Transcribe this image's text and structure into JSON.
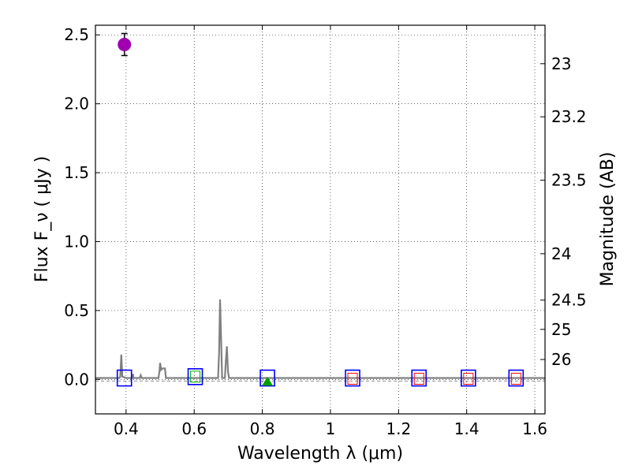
{
  "chart_data": {
    "type": "scatter",
    "xlabel": "Wavelength  λ (μm)",
    "ylabel": "Flux  F_ν  ( μJy )",
    "ylabel_right": "Magnitude (AB)",
    "xlim": [
      0.31,
      1.63
    ],
    "ylim": [
      -0.25,
      2.57
    ],
    "grid": true,
    "x_ticks": [
      0.4,
      0.6,
      0.8,
      1.0,
      1.2,
      1.4,
      1.6
    ],
    "x_tick_labels": [
      "0.4",
      "0.6",
      "0.8",
      "1",
      "1.2",
      "1.4",
      "1.6"
    ],
    "y_ticks": [
      0.0,
      0.5,
      1.0,
      1.5,
      2.0,
      2.5
    ],
    "y_tick_labels": [
      "0.0",
      "0.5",
      "1.0",
      "1.5",
      "2.0",
      "2.5"
    ],
    "right_ticks": [
      {
        "mag": 23,
        "label": "23"
      },
      {
        "mag": 23.2,
        "label": "23.2"
      },
      {
        "mag": 23.5,
        "label": "23.5"
      },
      {
        "mag": 24,
        "label": "24"
      },
      {
        "mag": 24.5,
        "label": "24.5"
      },
      {
        "mag": 25,
        "label": "25"
      },
      {
        "mag": 26,
        "label": "26"
      }
    ],
    "colors": {
      "detection": "#a000b0",
      "model_spectrum": "#808080",
      "model_photometry": "#0000ff",
      "limit_box": "#ff0000",
      "green_box": "#00b000",
      "green_marker": "#00a000"
    },
    "series": [
      {
        "role": "detection",
        "points": [
          {
            "x": 0.395,
            "y": 2.43,
            "yerr": 0.08
          }
        ]
      },
      {
        "role": "model_spectrum",
        "points": [
          [
            0.31,
            0.01
          ],
          [
            0.38,
            0.01
          ],
          [
            0.383,
            0.02
          ],
          [
            0.386,
            0.18
          ],
          [
            0.389,
            0.02
          ],
          [
            0.4,
            0.01
          ],
          [
            0.418,
            0.01
          ],
          [
            0.42,
            0.04
          ],
          [
            0.422,
            0.01
          ],
          [
            0.44,
            0.01
          ],
          [
            0.443,
            0.03
          ],
          [
            0.446,
            0.01
          ],
          [
            0.495,
            0.01
          ],
          [
            0.498,
            0.06
          ],
          [
            0.5,
            0.12
          ],
          [
            0.503,
            0.07
          ],
          [
            0.507,
            0.08
          ],
          [
            0.51,
            0.08
          ],
          [
            0.514,
            0.08
          ],
          [
            0.517,
            0.01
          ],
          [
            0.67,
            0.01
          ],
          [
            0.673,
            0.2
          ],
          [
            0.676,
            0.58
          ],
          [
            0.679,
            0.3
          ],
          [
            0.682,
            0.01
          ],
          [
            0.69,
            0.01
          ],
          [
            0.693,
            0.14
          ],
          [
            0.696,
            0.24
          ],
          [
            0.699,
            0.06
          ],
          [
            0.702,
            0.01
          ],
          [
            1.63,
            0.01
          ]
        ]
      },
      {
        "role": "model_photometry",
        "points": [
          {
            "x": 0.395,
            "y": 0.01
          },
          {
            "x": 0.603,
            "y": 0.02
          },
          {
            "x": 0.815,
            "y": 0.01
          },
          {
            "x": 1.065,
            "y": 0.01
          },
          {
            "x": 1.26,
            "y": 0.01
          },
          {
            "x": 1.405,
            "y": 0.01
          },
          {
            "x": 1.545,
            "y": 0.01
          }
        ]
      },
      {
        "role": "upper_limits",
        "points": [
          {
            "x": 1.065,
            "y": 0.005
          },
          {
            "x": 1.26,
            "y": 0.005
          },
          {
            "x": 1.405,
            "y": 0.005
          },
          {
            "x": 1.545,
            "y": 0.005
          }
        ]
      },
      {
        "role": "green_box",
        "points": [
          {
            "x": 0.603,
            "y": 0.02
          }
        ]
      },
      {
        "role": "green_marker",
        "points": [
          {
            "x": 0.815,
            "y": -0.02
          }
        ]
      }
    ]
  }
}
